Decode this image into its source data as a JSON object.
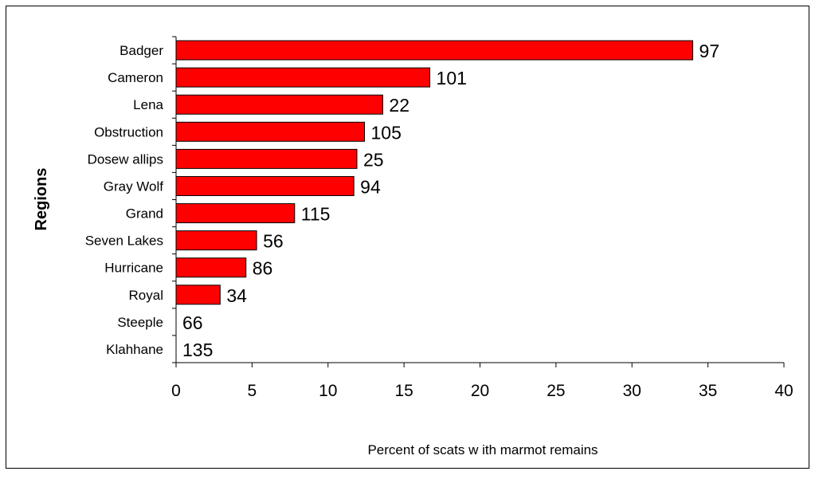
{
  "chart_data": {
    "type": "bar",
    "orientation": "horizontal",
    "categories": [
      "Badger",
      "Cameron",
      "Lena",
      "Obstruction",
      "Dosew allips",
      "Gray Wolf",
      "Grand",
      "Seven Lakes",
      "Hurricane",
      "Royal",
      "Steeple",
      "Klahhane"
    ],
    "values": [
      34,
      16.7,
      13.6,
      12.4,
      11.9,
      11.7,
      7.8,
      5.3,
      4.6,
      2.9,
      0,
      0
    ],
    "data_labels": [
      "97",
      "101",
      "22",
      "105",
      "25",
      "94",
      "115",
      "56",
      "86",
      "34",
      "66",
      "135"
    ],
    "title": "",
    "xlabel": "Percent of scats w ith marmot remains",
    "ylabel": "Regions",
    "xlim": [
      0,
      40
    ],
    "x_ticks": [
      "0",
      "5",
      "10",
      "15",
      "20",
      "25",
      "30",
      "35",
      "40"
    ],
    "grid": false,
    "legend": "none",
    "bar_color": "#ff0000",
    "bar_edge_color": "#000000"
  }
}
